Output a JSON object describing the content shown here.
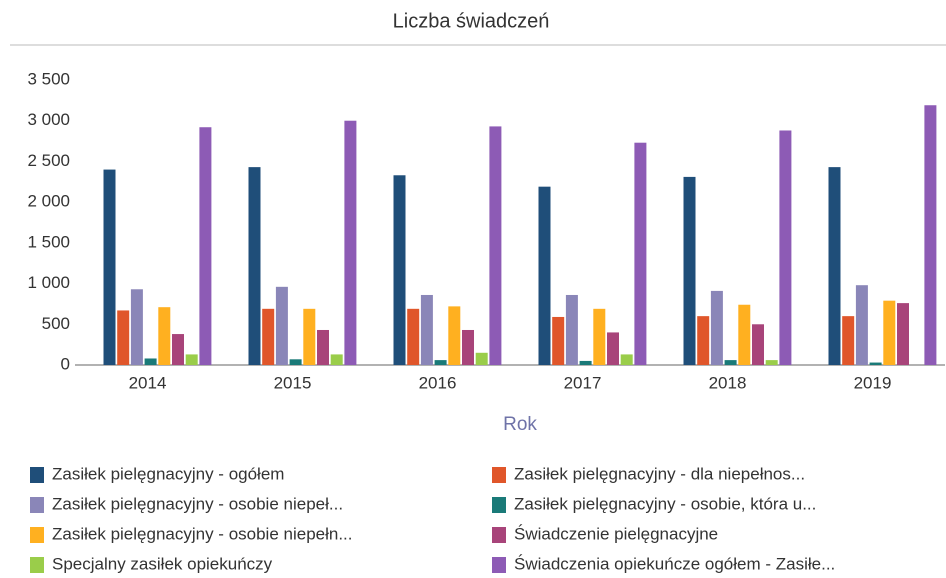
{
  "chart_data": {
    "type": "bar",
    "title": "Liczba świadczeń",
    "x_label": "Rok",
    "categories": [
      "2014",
      "2015",
      "2016",
      "2017",
      "2018",
      "2019"
    ],
    "series": [
      {
        "name": "Zasiłek pielęgnacyjny - ogółem",
        "color": "#1f4e79",
        "values": [
          2400,
          2430,
          2330,
          2190,
          2310,
          2430
        ]
      },
      {
        "name": "Zasiłek pielęgnacyjny - dla niepełnos...",
        "color": "#e0562a",
        "values": [
          670,
          690,
          690,
          590,
          600,
          600
        ]
      },
      {
        "name": "Zasiłek pielęgnacyjny - osobie niepeł...",
        "color": "#8a86b8",
        "values": [
          930,
          960,
          860,
          860,
          910,
          980
        ]
      },
      {
        "name": "Zasiłek pielęgnacyjny - osobie, która u...",
        "color": "#1a7a78",
        "values": [
          80,
          70,
          60,
          50,
          60,
          30
        ]
      },
      {
        "name": "Zasiłek pielęgnacyjny -  osobie niepełn...",
        "color": "#ffb020",
        "values": [
          710,
          690,
          720,
          690,
          740,
          790
        ]
      },
      {
        "name": "Świadczenie pielęgnacyjne",
        "color": "#a8447a",
        "values": [
          380,
          430,
          430,
          400,
          500,
          760
        ]
      },
      {
        "name": "Specjalny zasiłek opiekuńczy",
        "color": "#9acd4a",
        "values": [
          130,
          130,
          150,
          130,
          60,
          null
        ]
      },
      {
        "name": "Świadczenia opiekuńcze ogółem - Zasiłe...",
        "color": "#8d5bb5",
        "values": [
          2920,
          3000,
          2930,
          2730,
          2880,
          3190
        ]
      }
    ],
    "ylim": [
      0,
      3500
    ],
    "yticks": [
      0,
      {
        "value": 500,
        "label": "500"
      },
      {
        "value": 1000,
        "label": "1 000"
      },
      {
        "value": 1500,
        "label": "1 500"
      },
      {
        "value": 2000,
        "label": "2 000"
      },
      {
        "value": 2500,
        "label": "2 500"
      },
      {
        "value": 3000,
        "label": "3 000"
      },
      {
        "value": 3500,
        "label": "3 500"
      }
    ]
  }
}
